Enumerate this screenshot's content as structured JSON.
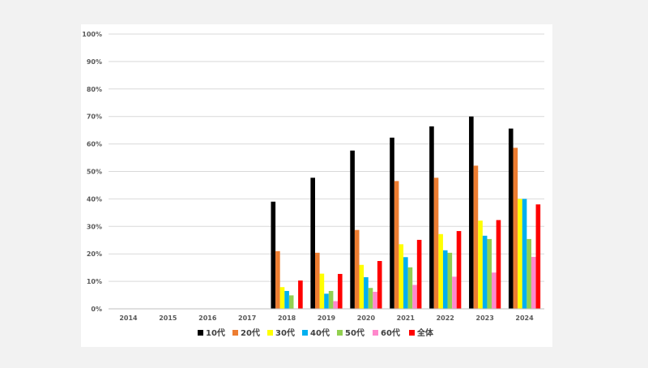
{
  "chart_data": {
    "type": "bar",
    "title": "",
    "xlabel": "",
    "ylabel": "",
    "ylim": [
      0,
      100
    ],
    "y_ticks": [
      "0%",
      "10%",
      "20%",
      "30%",
      "40%",
      "50%",
      "60%",
      "70%",
      "80%",
      "90%",
      "100%"
    ],
    "grid": true,
    "legend_position": "bottom",
    "categories": [
      "2014",
      "2015",
      "2016",
      "2017",
      "2018",
      "2019",
      "2020",
      "2021",
      "2022",
      "2023",
      "2024"
    ],
    "series": [
      {
        "name": "10代",
        "color": "#000000",
        "values": [
          null,
          null,
          null,
          null,
          39.0,
          47.7,
          57.6,
          62.3,
          66.4,
          70.0,
          65.6
        ]
      },
      {
        "name": "20代",
        "color": "#ed7d31",
        "values": [
          null,
          null,
          null,
          null,
          21.0,
          20.4,
          28.7,
          46.5,
          47.7,
          52.1,
          58.6
        ]
      },
      {
        "name": "30代",
        "color": "#ffff00",
        "values": [
          null,
          null,
          null,
          null,
          7.9,
          12.8,
          16.0,
          23.5,
          27.2,
          32.1,
          40.0
        ]
      },
      {
        "name": "40代",
        "color": "#00b0f0",
        "values": [
          null,
          null,
          null,
          null,
          6.5,
          5.5,
          11.5,
          18.8,
          21.3,
          26.6,
          40.0
        ]
      },
      {
        "name": "50代",
        "color": "#92d050",
        "values": [
          null,
          null,
          null,
          null,
          4.9,
          6.5,
          7.6,
          15.1,
          20.4,
          25.4,
          25.4
        ]
      },
      {
        "name": "60代",
        "color": "#ff88cc",
        "values": [
          null,
          null,
          null,
          null,
          null,
          2.8,
          6.2,
          8.7,
          11.7,
          13.2,
          18.9
        ]
      },
      {
        "name": "全体",
        "color": "#ff0000",
        "values": [
          null,
          null,
          null,
          null,
          10.3,
          12.7,
          17.4,
          25.1,
          28.3,
          32.3,
          38.0
        ]
      }
    ]
  }
}
